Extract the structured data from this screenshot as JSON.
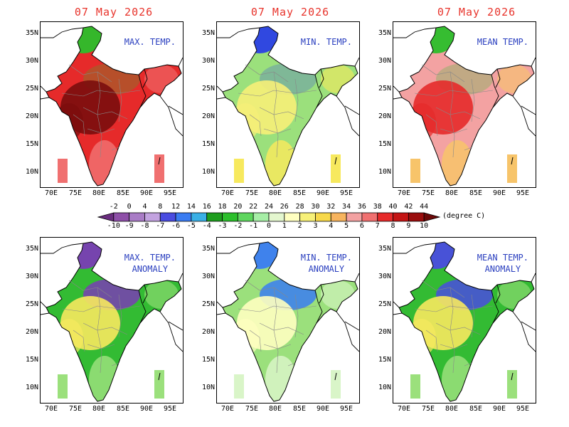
{
  "dates": [
    "07 May 2026",
    "07 May 2026",
    "07 May 2026"
  ],
  "panels": [
    {
      "title": [
        "MAX. TEMP."
      ],
      "palette": "abs",
      "values": {
        "hot": 40,
        "north": 20
      },
      "colors": {
        "base": "#e62a2a",
        "hot": "#7a0d0d",
        "north": "#2bbf2b",
        "south": "#f07070"
      }
    },
    {
      "title": [
        "MIN. TEMP."
      ],
      "palette": "abs",
      "values": {
        "hot": 28,
        "north": 8
      },
      "colors": {
        "base": "#9be07c",
        "hot": "#f7f078",
        "north": "#2a3fe6",
        "south": "#f7e95e"
      }
    },
    {
      "title": [
        "MEAN TEMP."
      ],
      "palette": "abs",
      "values": {
        "hot": 36,
        "north": 14
      },
      "colors": {
        "base": "#f3a2a2",
        "hot": "#e62a2a",
        "north": "#2bbf2b",
        "south": "#f7c46a"
      }
    },
    {
      "title": [
        "MAX. TEMP.",
        "ANOMALY"
      ],
      "palette": "anom",
      "values": {
        "hot": 1,
        "north": -6
      },
      "colors": {
        "base": "#33bb33",
        "hot": "#f7e95e",
        "north": "#7a3db5",
        "south": "#9be07c"
      }
    },
    {
      "title": [
        "MIN. TEMP.",
        "ANOMALY"
      ],
      "palette": "anom",
      "values": {
        "hot": 0,
        "north": -3
      },
      "colors": {
        "base": "#9be07c",
        "hot": "#ffffc0",
        "north": "#3a7cf2",
        "south": "#d9f5c8"
      }
    },
    {
      "title": [
        "MEAN TEMP.",
        "ANOMALY"
      ],
      "palette": "anom",
      "values": {
        "hot": 1,
        "north": -5
      },
      "colors": {
        "base": "#33bb33",
        "hot": "#f7e95e",
        "north": "#4a4ce0",
        "south": "#9be07c"
      }
    }
  ],
  "axis": {
    "lat_labels": [
      "35N",
      "30N",
      "25N",
      "20N",
      "15N",
      "10N"
    ],
    "lon_labels": [
      "70E",
      "75E",
      "80E",
      "85E",
      "90E",
      "95E"
    ]
  },
  "colorbar": {
    "abs_labels": [
      "-2",
      "0",
      "4",
      "8",
      "12",
      "14",
      "16",
      "18",
      "20",
      "22",
      "24",
      "26",
      "28",
      "30",
      "32",
      "34",
      "36",
      "38",
      "40",
      "42",
      "44"
    ],
    "anom_labels": [
      "-10",
      "-9",
      "-8",
      "-7",
      "-6",
      "-5",
      "-4",
      "-3",
      "-2",
      "-1",
      "0",
      "1",
      "2",
      "3",
      "4",
      "5",
      "6",
      "7",
      "8",
      "9",
      "10"
    ],
    "unit": "(degree C)",
    "colors": [
      "#6a2d7f",
      "#8e4fa8",
      "#a97cc6",
      "#c3a3e0",
      "#4a4ce0",
      "#3a7cf2",
      "#3ab0e6",
      "#1e9e1e",
      "#2bbf2b",
      "#5ed65e",
      "#a6eea6",
      "#e4f7cf",
      "#ffffc0",
      "#f7f078",
      "#f7d84a",
      "#f7b45e",
      "#f3a2a2",
      "#f07070",
      "#e62a2a",
      "#c41414",
      "#9a0d0d",
      "#6b0808"
    ]
  }
}
